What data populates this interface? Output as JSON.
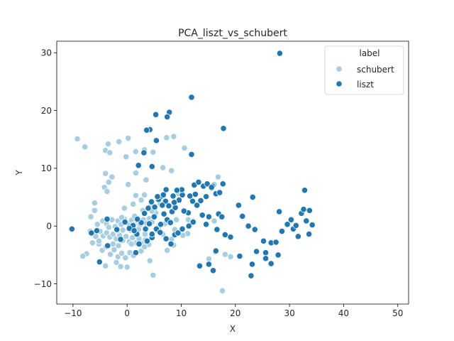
{
  "chart_data": {
    "type": "scatter",
    "title": "PCA_liszt_vs_schubert",
    "xlabel": "X",
    "ylabel": "Y",
    "xlim": [
      -13,
      52
    ],
    "ylim": [
      -13.5,
      32
    ],
    "xticks": [
      -10,
      0,
      10,
      20,
      30,
      40,
      50
    ],
    "yticks": [
      -10,
      0,
      10,
      20,
      30
    ],
    "grid": false,
    "legend": {
      "title": "label",
      "placement": "top-right"
    },
    "series": [
      {
        "name": "schubert",
        "color": "#a6cee3",
        "points": [
          [
            -9.2,
            15.1
          ],
          [
            -7.8,
            13.7
          ],
          [
            -4,
            13.1
          ],
          [
            -3.5,
            14.2
          ],
          [
            -3.2,
            12.7
          ],
          [
            -1.5,
            14.6
          ],
          [
            0.2,
            15.2
          ],
          [
            -0.2,
            12
          ],
          [
            1.6,
            12.9
          ],
          [
            3.2,
            13.2
          ],
          [
            4.8,
            12.8
          ],
          [
            7.3,
            15.3
          ],
          [
            8.6,
            15.5
          ],
          [
            10.6,
            13.5
          ],
          [
            6.6,
            10.1
          ],
          [
            8.2,
            9.6
          ],
          [
            1.6,
            9.2
          ],
          [
            -4,
            9.1
          ],
          [
            -2.8,
            8.5
          ],
          [
            -3.4,
            7.6
          ],
          [
            -4.2,
            6.7
          ],
          [
            -3.7,
            6
          ],
          [
            3.5,
            8
          ],
          [
            0.2,
            7.2
          ],
          [
            1.6,
            5.3
          ],
          [
            3.2,
            5.4
          ],
          [
            -6,
            4
          ],
          [
            -6,
            2.7
          ],
          [
            -6.7,
            1.6
          ],
          [
            -5.5,
            0.3
          ],
          [
            -4.5,
            0.9
          ],
          [
            -3.8,
            0.4
          ],
          [
            -3.4,
            -0.2
          ],
          [
            -2.8,
            1.1
          ],
          [
            -2.2,
            -0.1
          ],
          [
            -1.7,
            0.9
          ],
          [
            -1.1,
            0.3
          ],
          [
            -0.5,
            1.2
          ],
          [
            0.2,
            0.5
          ],
          [
            0.8,
            1
          ],
          [
            1.3,
            0.3
          ],
          [
            1.9,
            0.9
          ],
          [
            2.4,
            0.2
          ],
          [
            3,
            1.1
          ],
          [
            3.6,
            0.5
          ],
          [
            4.1,
            1.3
          ],
          [
            4.6,
            0.7
          ],
          [
            -5,
            -0.9
          ],
          [
            -4.4,
            -1.7
          ],
          [
            -3.8,
            -1.2
          ],
          [
            -3.2,
            -1.9
          ],
          [
            -2.6,
            -1.4
          ],
          [
            -2,
            -2.2
          ],
          [
            -1.4,
            -1.6
          ],
          [
            -0.8,
            -2.5
          ],
          [
            -0.2,
            -1.8
          ],
          [
            0.4,
            -2.7
          ],
          [
            1,
            -2
          ],
          [
            1.6,
            -2.9
          ],
          [
            2.2,
            -2.2
          ],
          [
            2.8,
            -3
          ],
          [
            3.4,
            -2.4
          ],
          [
            4,
            -3.2
          ],
          [
            -6.8,
            -0.9
          ],
          [
            -5.8,
            -1.8
          ],
          [
            -5.2,
            -3.1
          ],
          [
            -4.6,
            -4.2
          ],
          [
            -3.9,
            -3.6
          ],
          [
            -3.1,
            -4.9
          ],
          [
            -2.4,
            -4.1
          ],
          [
            -1.7,
            -5.3
          ],
          [
            -1,
            -4.7
          ],
          [
            -0.3,
            -5.5
          ],
          [
            0.5,
            -4.6
          ],
          [
            1.2,
            -5.1
          ],
          [
            -7.5,
            -4.8
          ],
          [
            -8.2,
            -5.2
          ],
          [
            -4,
            -6.9
          ],
          [
            -2,
            -6.3
          ],
          [
            -1.2,
            -7
          ],
          [
            0,
            -7.1
          ],
          [
            4.2,
            -6
          ],
          [
            4.8,
            -8.5
          ],
          [
            7.4,
            -4.2
          ],
          [
            8.6,
            -3.3
          ],
          [
            2.6,
            -4.3
          ],
          [
            3.2,
            -3.6
          ],
          [
            0.8,
            -3.1
          ],
          [
            -1.6,
            -3.4
          ],
          [
            -2.6,
            -3.1
          ],
          [
            -1,
            1.5
          ],
          [
            1.4,
            1.7
          ],
          [
            2.9,
            2.7
          ],
          [
            4.4,
            3.6
          ],
          [
            5.3,
            2.3
          ],
          [
            6.1,
            3.9
          ],
          [
            5.6,
            -0.8
          ],
          [
            6.6,
            -1.4
          ],
          [
            8.2,
            -2.3
          ],
          [
            8.8,
            -0.6
          ],
          [
            11.6,
            0.2
          ],
          [
            11.2,
            -1.3
          ],
          [
            16.8,
            8.5
          ],
          [
            16.1,
            7.2
          ],
          [
            15.6,
            6.5
          ],
          [
            16.1,
            0.9
          ],
          [
            15.1,
            -5.7
          ],
          [
            16.3,
            -4.5
          ],
          [
            18.1,
            -4.9
          ],
          [
            19.1,
            -5.3
          ],
          [
            17.6,
            -11.2
          ],
          [
            11.3,
            1.1
          ],
          [
            12.2,
            0.9
          ],
          [
            4.6,
            2.6
          ],
          [
            5.8,
            -0.2
          ],
          [
            0.6,
            -0.7
          ],
          [
            -0.8,
            -0.7
          ],
          [
            -1.8,
            -0.8
          ],
          [
            2.1,
            -0.6
          ],
          [
            3.3,
            -1.4
          ],
          [
            -5.2,
            -2.6
          ],
          [
            -6.4,
            -2.9
          ],
          [
            7,
            0.4
          ],
          [
            9.1,
            1.1
          ],
          [
            10.3,
            -1.6
          ],
          [
            -0.5,
            3.1
          ],
          [
            1.1,
            3.8
          ],
          [
            2.6,
            4.5
          ],
          [
            9.5,
            5.6
          ],
          [
            10,
            6
          ]
        ]
      },
      {
        "name": "liszt",
        "color": "#1f78b4",
        "points": [
          [
            28.2,
            29.9
          ],
          [
            11.9,
            22.3
          ],
          [
            7.8,
            19.7
          ],
          [
            7.4,
            18.9
          ],
          [
            5.3,
            19.3
          ],
          [
            17.8,
            16.9
          ],
          [
            4.2,
            16.7
          ],
          [
            3.6,
            16.6
          ],
          [
            5.4,
            14.8
          ],
          [
            3.1,
            12.7
          ],
          [
            11.9,
            12.4
          ],
          [
            2.1,
            10.5
          ],
          [
            4.6,
            10.3
          ],
          [
            -10.2,
            -0.5
          ],
          [
            -6.6,
            -1.2
          ],
          [
            -5.6,
            -0.8
          ],
          [
            -5.1,
            -6.2
          ],
          [
            -3.6,
            -3.4
          ],
          [
            -3.7,
            1.2
          ],
          [
            -1.9,
            -0.6
          ],
          [
            -1.2,
            -2.3
          ],
          [
            1.8,
            -1.4
          ],
          [
            2.2,
            -3.1
          ],
          [
            1.6,
            -4.6
          ],
          [
            3.7,
            -2.6
          ],
          [
            4.6,
            -2
          ],
          [
            5.4,
            -0.5
          ],
          [
            6.1,
            -1.1
          ],
          [
            7.2,
            -2.2
          ],
          [
            8.1,
            -3.1
          ],
          [
            8.8,
            -1.5
          ],
          [
            9.4,
            -1.2
          ],
          [
            10.2,
            -0.5
          ],
          [
            11.4,
            0
          ],
          [
            12.2,
            0.7
          ],
          [
            3.2,
            2.2
          ],
          [
            3.9,
            3.1
          ],
          [
            4.5,
            4.2
          ],
          [
            5.1,
            3.3
          ],
          [
            5.8,
            4.6
          ],
          [
            6.4,
            5.2
          ],
          [
            7.1,
            4.3
          ],
          [
            7.7,
            3.5
          ],
          [
            8.3,
            2.5
          ],
          [
            8.9,
            3.2
          ],
          [
            9.6,
            4.5
          ],
          [
            10.2,
            5.4
          ],
          [
            10.1,
            6.3
          ],
          [
            9.2,
            6.2
          ],
          [
            12.4,
            7.1
          ],
          [
            13.2,
            7.6
          ],
          [
            14.1,
            6.9
          ],
          [
            14.8,
            7.3
          ],
          [
            15.8,
            6.9
          ],
          [
            16.4,
            5.6
          ],
          [
            17.1,
            5.8
          ],
          [
            17.7,
            7.3
          ],
          [
            12.6,
            5.5
          ],
          [
            11.6,
            5.2
          ],
          [
            12.9,
            3.6
          ],
          [
            6.8,
            2.1
          ],
          [
            7.4,
            1.1
          ],
          [
            6.2,
            0.3
          ],
          [
            5,
            1.6
          ],
          [
            4.1,
            0.4
          ],
          [
            3.4,
            -0.5
          ],
          [
            2.6,
            0.6
          ],
          [
            1.9,
            1.2
          ],
          [
            1.1,
            0.1
          ],
          [
            0.4,
            -0.4
          ],
          [
            -0.4,
            0.7
          ],
          [
            5.6,
            5.1
          ],
          [
            6.7,
            5.4
          ],
          [
            7.2,
            6.3
          ],
          [
            8.5,
            5.2
          ],
          [
            11.3,
            2.3
          ],
          [
            10.5,
            2.6
          ],
          [
            12.1,
            4.3
          ],
          [
            13.6,
            4.4
          ],
          [
            14.6,
            5.1
          ],
          [
            15.6,
            6.7
          ],
          [
            13.9,
            1.9
          ],
          [
            15.1,
            1.6
          ],
          [
            16.9,
            2.1
          ],
          [
            17.5,
            1.6
          ],
          [
            14.6,
            0.3
          ],
          [
            16.6,
            -0.6
          ],
          [
            16.4,
            -4.3
          ],
          [
            15.1,
            -6.6
          ],
          [
            13.4,
            -6.9
          ],
          [
            15.9,
            -7.7
          ],
          [
            20.6,
            3.6
          ],
          [
            21.3,
            1.7
          ],
          [
            19.1,
            -1.9
          ],
          [
            20.8,
            -5.2
          ],
          [
            22.4,
            0
          ],
          [
            23.6,
            -0.6
          ],
          [
            23.2,
            5
          ],
          [
            23.9,
            -4.4
          ],
          [
            23.1,
            -6.6
          ],
          [
            22.9,
            -8.6
          ],
          [
            25.2,
            -2.6
          ],
          [
            25.6,
            -4.6
          ],
          [
            25.6,
            -5.6
          ],
          [
            26.6,
            -2.9
          ],
          [
            26.6,
            -6.5
          ],
          [
            27.5,
            -2.8
          ],
          [
            28.1,
            2.5
          ],
          [
            27.9,
            -5
          ],
          [
            28.6,
            -0.9
          ],
          [
            29.6,
            0.3
          ],
          [
            30.3,
            1.1
          ],
          [
            30.7,
            -0.5
          ],
          [
            31.2,
            0.1
          ],
          [
            31.6,
            -1.8
          ],
          [
            32.2,
            2.2
          ],
          [
            32.6,
            2.9
          ],
          [
            32.8,
            6.2
          ],
          [
            33.1,
            0.9
          ],
          [
            33.6,
            -1.4
          ],
          [
            33.7,
            2.7
          ],
          [
            34.2,
            0.2
          ],
          [
            18.1,
            -1.5
          ],
          [
            6.5,
            3.6
          ],
          [
            4.6,
            -1.4
          ],
          [
            8,
            0.6
          ],
          [
            8.7,
            4.1
          ],
          [
            1.3,
            -0.8
          ]
        ]
      }
    ]
  }
}
